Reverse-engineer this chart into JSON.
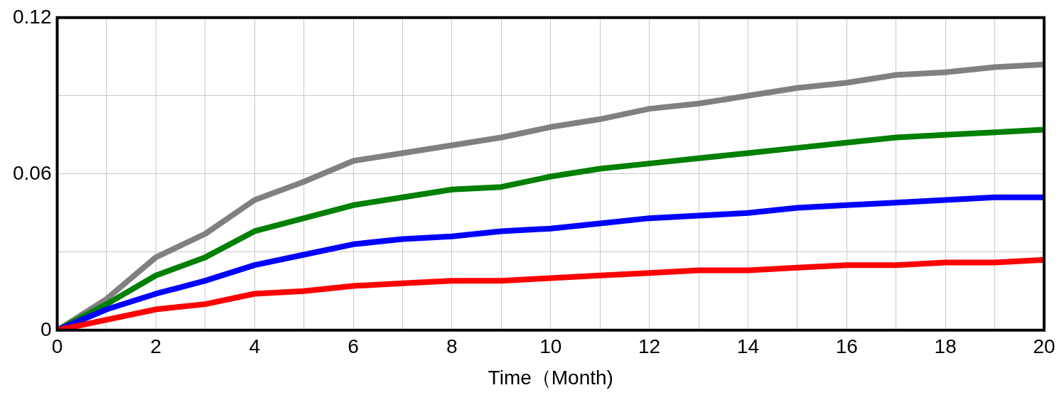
{
  "chart_data": {
    "type": "line",
    "xlabel": "Time（Month)",
    "x": [
      0,
      1,
      2,
      3,
      4,
      5,
      6,
      7,
      8,
      9,
      10,
      11,
      12,
      13,
      14,
      15,
      16,
      17,
      18,
      19,
      20
    ],
    "xlim": [
      0,
      20
    ],
    "xticks": [
      0,
      {
        "value": 1,
        "label": null
      },
      2,
      {
        "value": 3,
        "label": null
      },
      4,
      {
        "value": 5,
        "label": null
      },
      6,
      {
        "value": 7,
        "label": null
      },
      8,
      {
        "value": 9,
        "label": null
      },
      10,
      {
        "value": 11,
        "label": null
      },
      12,
      {
        "value": 13,
        "label": null
      },
      14,
      {
        "value": 15,
        "label": null
      },
      16,
      {
        "value": 17,
        "label": null
      },
      18,
      {
        "value": 19,
        "label": null
      },
      20
    ],
    "ylim": [
      0,
      0.12
    ],
    "yticks": [
      0,
      {
        "value": 0.03,
        "label": null
      },
      0.06,
      {
        "value": 0.09,
        "label": null
      },
      0.12
    ],
    "grid": true,
    "marker": "none",
    "line_style": "solid",
    "series": [
      {
        "color": "#808080",
        "values": [
          0,
          0.012,
          0.028,
          0.037,
          0.05,
          0.057,
          0.065,
          0.068,
          0.071,
          0.074,
          0.078,
          0.081,
          0.085,
          0.087,
          0.09,
          0.093,
          0.095,
          0.098,
          0.099,
          0.101,
          0.102
        ]
      },
      {
        "color": "#008000",
        "values": [
          0,
          0.01,
          0.021,
          0.028,
          0.038,
          0.043,
          0.048,
          0.051,
          0.054,
          0.055,
          0.059,
          0.062,
          0.064,
          0.066,
          0.068,
          0.07,
          0.072,
          0.074,
          0.075,
          0.076,
          0.077
        ]
      },
      {
        "color": "#0000ff",
        "values": [
          0,
          0.008,
          0.014,
          0.019,
          0.025,
          0.029,
          0.033,
          0.035,
          0.036,
          0.038,
          0.039,
          0.041,
          0.043,
          0.044,
          0.045,
          0.047,
          0.048,
          0.049,
          0.05,
          0.051,
          0.051
        ]
      },
      {
        "color": "#ff0000",
        "values": [
          0,
          0.004,
          0.008,
          0.01,
          0.014,
          0.015,
          0.017,
          0.018,
          0.019,
          0.019,
          0.02,
          0.021,
          0.022,
          0.023,
          0.023,
          0.024,
          0.025,
          0.025,
          0.026,
          0.026,
          0.027
        ]
      }
    ]
  }
}
